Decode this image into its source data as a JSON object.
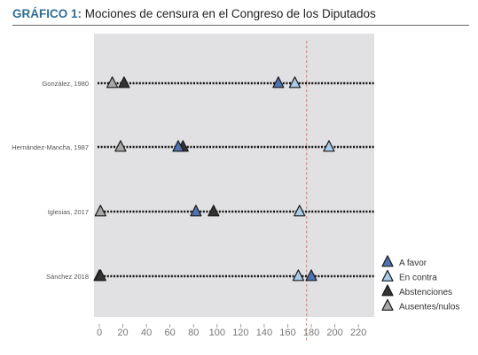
{
  "header": {
    "prefix": "GRÁFICO 1:",
    "title": "Mociones de censura en el Congreso de los Diputados"
  },
  "chart_data": {
    "type": "scatter",
    "marker": "triangle",
    "xlim": [
      0,
      230
    ],
    "xticks": [
      0,
      20,
      40,
      60,
      80,
      100,
      120,
      140,
      160,
      180,
      200,
      220
    ],
    "majority_line": 176,
    "grid": false,
    "legend_position": "right",
    "categories": [
      "González, 1980",
      "Hernández-Mancha, 1987",
      "Iglesias, 2017",
      "Sánchez 2018"
    ],
    "series": [
      {
        "name": "A favor",
        "color": "#4f73b3",
        "values": [
          152,
          67,
          82,
          180
        ]
      },
      {
        "name": "En contra",
        "color": "#a9cbe8",
        "values": [
          166,
          195,
          170,
          169
        ]
      },
      {
        "name": "Abstenciones",
        "color": "#333333",
        "values": [
          21,
          71,
          97,
          1
        ]
      },
      {
        "name": "Ausentes/nulos",
        "color": "#a7a7a7",
        "values": [
          11,
          18,
          1,
          0
        ]
      }
    ]
  }
}
